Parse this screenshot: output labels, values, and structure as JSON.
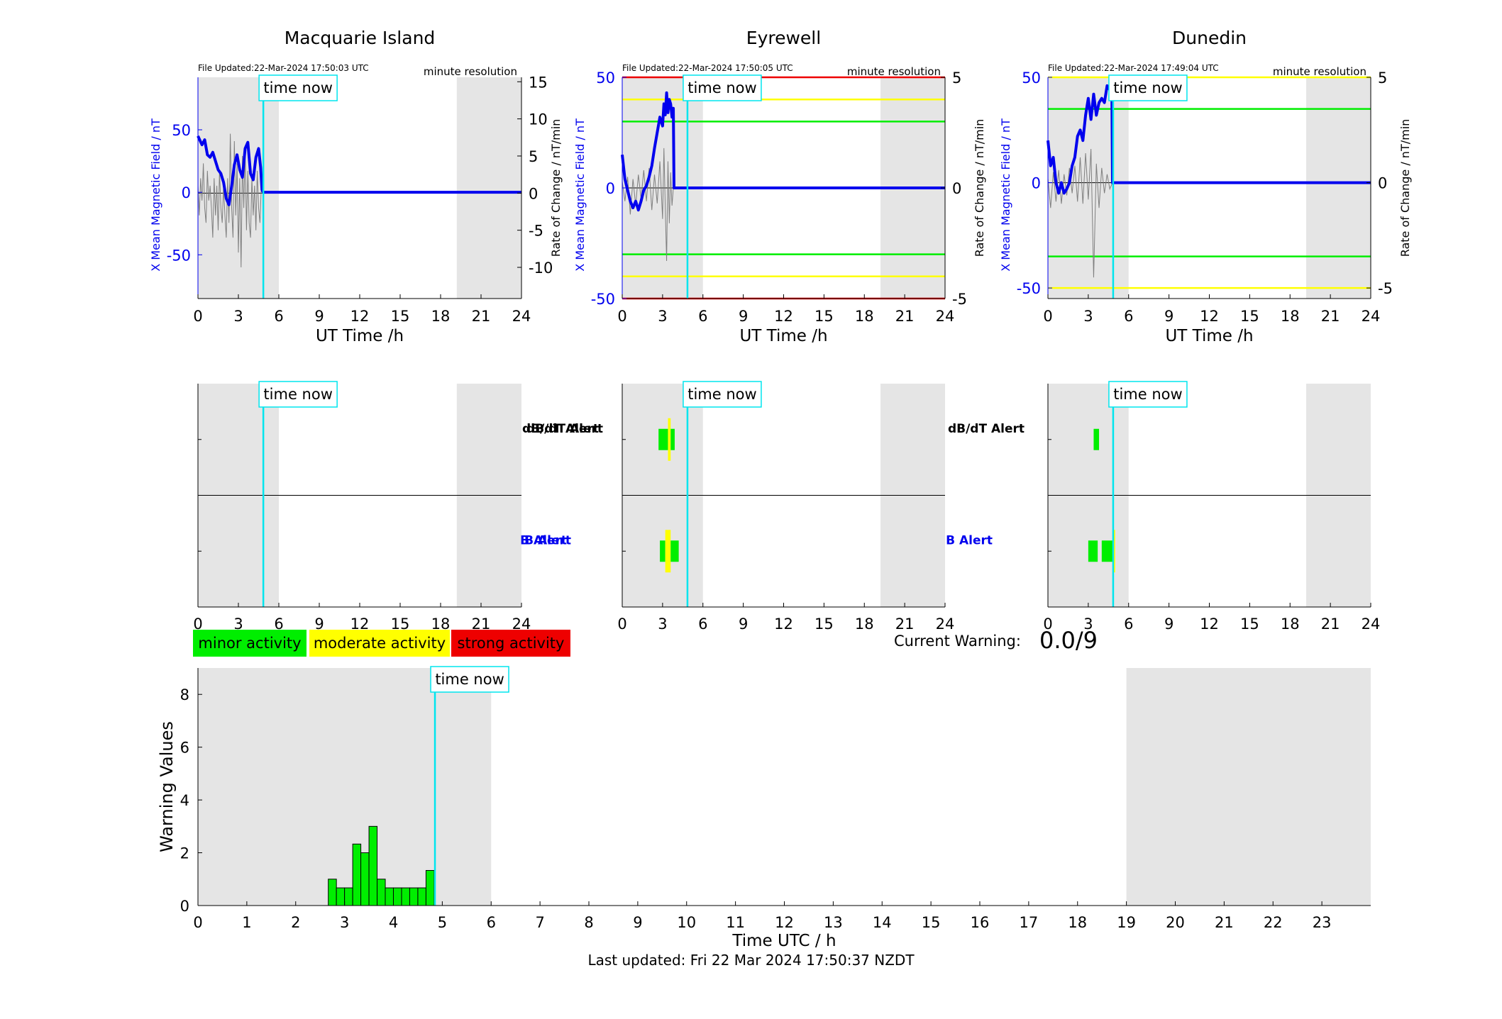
{
  "colors": {
    "night_shade": "#e5e5e5",
    "mean_field": "#0000ee",
    "rate_trace": "#7f7f7f",
    "time_now": "#00e5ee",
    "minor": "#00ee00",
    "moderate": "#ffff00",
    "strong": "#ee0000"
  },
  "stations": [
    {
      "name": "Macquarie Island",
      "file_updated": "File Updated:22-Mar-2024 17:50:03 UTC",
      "resolution": "minute resolution",
      "left_axis_label": "X Mean Magnetic Field / nT",
      "right_axis_label": "Rate of Change / nT/min",
      "x_label": "UT Time /h",
      "ylim": [
        -85,
        92
      ],
      "y_ticks": [
        50,
        0,
        -50
      ],
      "rate_lim": [
        -14.2,
        15.6
      ],
      "rate_ticks": [
        15,
        10,
        5,
        0,
        -5,
        -10
      ],
      "thresholds": [],
      "night_bands": [
        [
          0,
          6
        ],
        [
          19.2,
          24
        ]
      ],
      "time_now_hour": 4.85,
      "b_series": [
        [
          0,
          45
        ],
        [
          0.3,
          38
        ],
        [
          0.5,
          42
        ],
        [
          0.7,
          30
        ],
        [
          0.9,
          28
        ],
        [
          1.1,
          32
        ],
        [
          1.3,
          25
        ],
        [
          1.5,
          18
        ],
        [
          1.7,
          15
        ],
        [
          1.9,
          8
        ],
        [
          2.1,
          -5
        ],
        [
          2.3,
          -10
        ],
        [
          2.5,
          5
        ],
        [
          2.7,
          22
        ],
        [
          2.9,
          30
        ],
        [
          3.1,
          18
        ],
        [
          3.3,
          12
        ],
        [
          3.5,
          35
        ],
        [
          3.7,
          40
        ],
        [
          3.9,
          15
        ],
        [
          4.1,
          10
        ],
        [
          4.3,
          28
        ],
        [
          4.5,
          35
        ],
        [
          4.65,
          20
        ],
        [
          4.75,
          2
        ],
        [
          4.85,
          0
        ],
        [
          24,
          0
        ]
      ],
      "rate_series": [
        [
          0,
          1
        ],
        [
          0.1,
          -3
        ],
        [
          0.2,
          2
        ],
        [
          0.3,
          -1
        ],
        [
          0.4,
          4
        ],
        [
          0.5,
          -2
        ],
        [
          0.6,
          -4
        ],
        [
          0.7,
          3
        ],
        [
          0.8,
          -1
        ],
        [
          0.9,
          1
        ],
        [
          1.0,
          -2
        ],
        [
          1.1,
          -6
        ],
        [
          1.2,
          2
        ],
        [
          1.3,
          -3
        ],
        [
          1.4,
          1
        ],
        [
          1.5,
          -5
        ],
        [
          1.6,
          3
        ],
        [
          1.7,
          -2
        ],
        [
          1.8,
          -4
        ],
        [
          1.9,
          1
        ],
        [
          2.0,
          -3
        ],
        [
          2.1,
          -6
        ],
        [
          2.2,
          2
        ],
        [
          2.3,
          -4
        ],
        [
          2.4,
          8
        ],
        [
          2.5,
          -2
        ],
        [
          2.6,
          -6
        ],
        [
          2.7,
          7
        ],
        [
          2.8,
          -3
        ],
        [
          2.9,
          4
        ],
        [
          3.0,
          -8
        ],
        [
          3.1,
          2
        ],
        [
          3.2,
          -10
        ],
        [
          3.3,
          5
        ],
        [
          3.4,
          -2
        ],
        [
          3.5,
          6
        ],
        [
          3.6,
          -5
        ],
        [
          3.7,
          3
        ],
        [
          3.8,
          -4
        ],
        [
          3.9,
          -6
        ],
        [
          4.0,
          2
        ],
        [
          4.1,
          -3
        ],
        [
          4.2,
          1
        ],
        [
          4.3,
          -5
        ],
        [
          4.4,
          3
        ],
        [
          4.5,
          -2
        ],
        [
          4.6,
          -4
        ],
        [
          4.7,
          1
        ],
        [
          4.8,
          0
        ]
      ],
      "alert_label_db": "dB/dT Alert",
      "alert_label_b": "B Alert",
      "db_alerts": [],
      "b_alerts": []
    },
    {
      "name": "Eyrewell",
      "file_updated": "File Updated:22-Mar-2024 17:50:05 UTC",
      "resolution": "minute resolution",
      "left_axis_label": "X Mean Magnetic Field / nT",
      "right_axis_label": "Rate of Change / nT/min",
      "x_label": "UT Time /h",
      "ylim": [
        -50,
        50
      ],
      "y_ticks": [
        50,
        0,
        -50
      ],
      "rate_lim": [
        -5,
        5
      ],
      "rate_ticks": [
        5,
        0,
        -5
      ],
      "thresholds": [
        {
          "value": 50,
          "level": "strong"
        },
        {
          "value": 40,
          "level": "moderate"
        },
        {
          "value": 30,
          "level": "minor"
        },
        {
          "value": -30,
          "level": "minor"
        },
        {
          "value": -40,
          "level": "moderate"
        },
        {
          "value": -50,
          "level": "strong"
        }
      ],
      "night_bands": [
        [
          0,
          6
        ],
        [
          19.2,
          24
        ]
      ],
      "time_now_hour": 4.85,
      "b_series": [
        [
          0,
          15
        ],
        [
          0.2,
          4
        ],
        [
          0.4,
          -1
        ],
        [
          0.6,
          -6
        ],
        [
          0.8,
          -9
        ],
        [
          1.0,
          -6
        ],
        [
          1.2,
          -10
        ],
        [
          1.4,
          -6
        ],
        [
          1.6,
          -1
        ],
        [
          1.8,
          1
        ],
        [
          2.0,
          5
        ],
        [
          2.2,
          10
        ],
        [
          2.4,
          18
        ],
        [
          2.6,
          25
        ],
        [
          2.8,
          32
        ],
        [
          3.0,
          28
        ],
        [
          3.1,
          38
        ],
        [
          3.2,
          33
        ],
        [
          3.3,
          43
        ],
        [
          3.4,
          34
        ],
        [
          3.5,
          40
        ],
        [
          3.6,
          38
        ],
        [
          3.7,
          32
        ],
        [
          3.8,
          36
        ],
        [
          3.85,
          0
        ],
        [
          24,
          0
        ]
      ],
      "rate_series": [
        [
          0,
          0.3
        ],
        [
          0.2,
          -0.6
        ],
        [
          0.4,
          0.5
        ],
        [
          0.6,
          -1.2
        ],
        [
          0.8,
          0.4
        ],
        [
          1.0,
          -0.8
        ],
        [
          1.2,
          0.6
        ],
        [
          1.4,
          -0.5
        ],
        [
          1.6,
          0.8
        ],
        [
          1.8,
          -0.6
        ],
        [
          2.0,
          0.9
        ],
        [
          2.2,
          -1.0
        ],
        [
          2.4,
          0.6
        ],
        [
          2.6,
          -0.7
        ],
        [
          2.8,
          1.2
        ],
        [
          3.0,
          -1.4
        ],
        [
          3.1,
          1.8
        ],
        [
          3.2,
          -0.9
        ],
        [
          3.3,
          -3.3
        ],
        [
          3.4,
          1.2
        ],
        [
          3.5,
          -1.6
        ],
        [
          3.6,
          0.7
        ],
        [
          3.7,
          -0.8
        ],
        [
          3.8,
          0
        ]
      ],
      "alert_label_db": "",
      "alert_label_b": "",
      "db_alerts": [
        {
          "start": 2.7,
          "end": 3.4,
          "height": 1.0,
          "level": "minor"
        },
        {
          "start": 3.4,
          "end": 3.6,
          "height": 2.0,
          "level": "moderate"
        },
        {
          "start": 3.6,
          "end": 3.9,
          "height": 1.0,
          "level": "minor"
        }
      ],
      "b_alerts": [
        {
          "start": 2.8,
          "end": 3.2,
          "height": 1.0,
          "level": "minor"
        },
        {
          "start": 3.2,
          "end": 3.6,
          "height": 2.0,
          "level": "moderate"
        },
        {
          "start": 3.6,
          "end": 4.2,
          "height": 1.0,
          "level": "minor"
        }
      ]
    },
    {
      "name": "Dunedin",
      "file_updated": "File Updated:22-Mar-2024 17:49:04 UTC",
      "resolution": "minute resolution",
      "left_axis_label": "X Mean Magnetic Field / nT",
      "right_axis_label": "Rate of Change / nT/min",
      "x_label": "UT Time /h",
      "ylim": [
        -55,
        50
      ],
      "y_ticks": [
        50,
        0,
        -50
      ],
      "rate_lim": [
        -5.5,
        5.0
      ],
      "rate_ticks": [
        5,
        0,
        -5
      ],
      "thresholds": [
        {
          "value": 50,
          "level": "moderate"
        },
        {
          "value": 35,
          "level": "minor"
        },
        {
          "value": -35,
          "level": "minor"
        },
        {
          "value": -50,
          "level": "moderate"
        }
      ],
      "night_bands": [
        [
          0,
          6
        ],
        [
          19.2,
          24
        ]
      ],
      "time_now_hour": 4.85,
      "b_series": [
        [
          0,
          20
        ],
        [
          0.2,
          8
        ],
        [
          0.4,
          12
        ],
        [
          0.6,
          0
        ],
        [
          0.8,
          -5
        ],
        [
          1.0,
          0
        ],
        [
          1.2,
          -5
        ],
        [
          1.4,
          -3
        ],
        [
          1.6,
          0
        ],
        [
          1.8,
          8
        ],
        [
          2.0,
          12
        ],
        [
          2.2,
          22
        ],
        [
          2.4,
          25
        ],
        [
          2.6,
          20
        ],
        [
          2.8,
          32
        ],
        [
          3.0,
          40
        ],
        [
          3.2,
          30
        ],
        [
          3.4,
          42
        ],
        [
          3.6,
          32
        ],
        [
          3.8,
          38
        ],
        [
          4.0,
          40
        ],
        [
          4.2,
          38
        ],
        [
          4.4,
          46
        ],
        [
          4.6,
          44
        ],
        [
          4.75,
          45
        ],
        [
          4.8,
          0
        ],
        [
          24,
          0
        ]
      ],
      "rate_series": [
        [
          0,
          0.2
        ],
        [
          0.2,
          -1.2
        ],
        [
          0.4,
          0.5
        ],
        [
          0.6,
          -0.9
        ],
        [
          0.8,
          0.6
        ],
        [
          1.0,
          -1.0
        ],
        [
          1.2,
          0.4
        ],
        [
          1.4,
          -0.6
        ],
        [
          1.6,
          0.7
        ],
        [
          1.8,
          -0.5
        ],
        [
          2.0,
          0.8
        ],
        [
          2.2,
          -0.9
        ],
        [
          2.4,
          1.2
        ],
        [
          2.6,
          -1.0
        ],
        [
          2.8,
          1.4
        ],
        [
          3.0,
          -0.8
        ],
        [
          3.2,
          1.6
        ],
        [
          3.4,
          -4.5
        ],
        [
          3.6,
          0.9
        ],
        [
          3.8,
          -1.2
        ],
        [
          4.0,
          0.7
        ],
        [
          4.2,
          -0.5
        ],
        [
          4.4,
          0.4
        ],
        [
          4.6,
          -0.3
        ],
        [
          4.8,
          0
        ]
      ],
      "alert_label_db": "",
      "alert_label_b": "",
      "db_alerts": [
        {
          "start": 3.4,
          "end": 3.8,
          "height": 1.0,
          "level": "minor"
        }
      ],
      "b_alerts": [
        {
          "start": 3.0,
          "end": 3.7,
          "height": 1.0,
          "level": "minor"
        },
        {
          "start": 4.0,
          "end": 4.8,
          "height": 1.0,
          "level": "minor"
        },
        {
          "start": 4.8,
          "end": 5.0,
          "height": 2.0,
          "level": "moderate"
        }
      ]
    }
  ],
  "legend": {
    "minor": "minor activity",
    "moderate": "moderate activity",
    "strong": "strong activity"
  },
  "current_warning": {
    "label": "Current Warning:",
    "value": "0.0/9"
  },
  "time_now_label": "time now",
  "chart_data": {
    "type": "bar",
    "title": "",
    "xlabel": "Time UTC / h",
    "ylabel": "Warning Values",
    "xlim": [
      0,
      24
    ],
    "ylim": [
      0,
      9
    ],
    "x_ticks": [
      0,
      1,
      2,
      3,
      4,
      5,
      6,
      7,
      8,
      9,
      10,
      11,
      12,
      13,
      14,
      15,
      16,
      17,
      18,
      19,
      20,
      21,
      22,
      23
    ],
    "y_ticks": [
      0,
      2,
      4,
      6,
      8
    ],
    "bin_width": 0.1667,
    "bins": [
      {
        "start": 2.667,
        "value": 1.0
      },
      {
        "start": 2.833,
        "value": 0.67
      },
      {
        "start": 3.0,
        "value": 0.67
      },
      {
        "start": 3.167,
        "value": 2.33
      },
      {
        "start": 3.333,
        "value": 2.0
      },
      {
        "start": 3.5,
        "value": 3.0
      },
      {
        "start": 3.667,
        "value": 1.0
      },
      {
        "start": 3.833,
        "value": 0.67
      },
      {
        "start": 4.0,
        "value": 0.67
      },
      {
        "start": 4.167,
        "value": 0.67
      },
      {
        "start": 4.333,
        "value": 0.67
      },
      {
        "start": 4.5,
        "value": 0.67
      },
      {
        "start": 4.667,
        "value": 1.33
      }
    ],
    "night_bands": [
      [
        0,
        6
      ],
      [
        19,
        24
      ]
    ],
    "time_now_hour": 4.85
  },
  "last_updated": "Last updated: Fri 22 Mar 2024 17:50:37 NZDT"
}
